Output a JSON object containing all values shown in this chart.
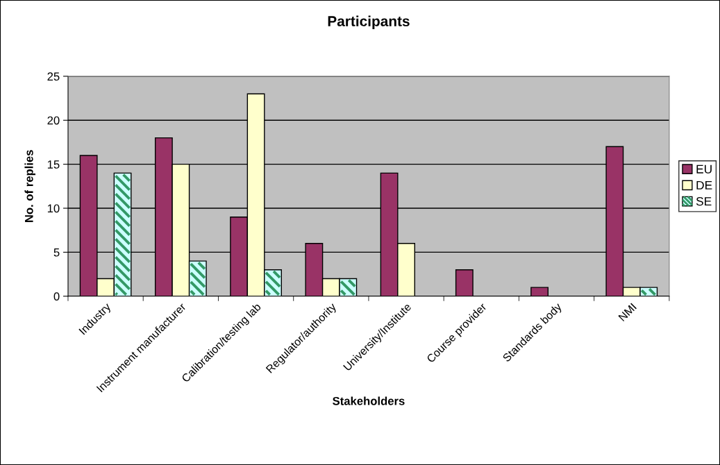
{
  "chart_data": {
    "type": "bar",
    "title": "Participants",
    "xlabel": "Stakeholders",
    "ylabel": "No. of replies",
    "categories": [
      "Industry",
      "Instrument manufacturer",
      "Calibration/testing lab",
      "Regulator/authority",
      "University/Institute",
      "Course provider",
      "Standards body",
      "NMI"
    ],
    "series": [
      {
        "name": "EU",
        "color": "#993366",
        "values": [
          16,
          18,
          9,
          6,
          14,
          3,
          1,
          17
        ]
      },
      {
        "name": "DE",
        "color": "#ffffcc",
        "values": [
          2,
          15,
          23,
          2,
          6,
          null,
          null,
          1
        ]
      },
      {
        "name": "SE",
        "color": "#ccffff",
        "values": [
          14,
          4,
          3,
          2,
          null,
          null,
          null,
          1
        ]
      }
    ],
    "ylim": [
      0,
      25
    ],
    "yticks": [
      0,
      5,
      10,
      15,
      20,
      25
    ],
    "grid": "y",
    "legend": "right"
  }
}
